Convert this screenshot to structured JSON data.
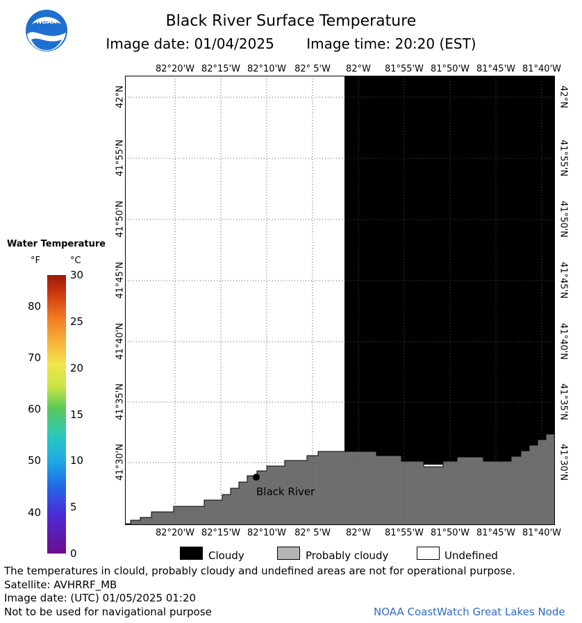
{
  "title": "Black River Surface Temperature",
  "image_date_label": "Image date: 01/04/2025",
  "image_time_label": "Image time: 20:20 (EST)",
  "logo_text": "NOAA",
  "longitudes": [
    "82°20'W",
    "82°15'W",
    "82°10'W",
    "82° 5'W",
    "82°W",
    "81°55'W",
    "81°50'W",
    "81°45'W",
    "81°40'W"
  ],
  "latitudes": [
    "42°N",
    "41°55'N",
    "41°50'N",
    "41°45'N",
    "41°40'N",
    "41°35'N",
    "41°30'N"
  ],
  "place_label": "Black River",
  "colorbar": {
    "title": "Water Temperature",
    "unit_f": "°F",
    "unit_c": "°C",
    "f_ticks": [
      "80",
      "70",
      "60",
      "50",
      "40"
    ],
    "c_ticks": [
      "30",
      "25",
      "20",
      "15",
      "10",
      "5",
      "0"
    ]
  },
  "legend": [
    {
      "label": "Cloudy",
      "color": "#000000"
    },
    {
      "label": "Probably cloudy",
      "color": "#b4b4b4"
    },
    {
      "label": "Undefined",
      "color": "#ffffff"
    }
  ],
  "footer": {
    "disclaimer": "The temperatures in clould, probably cloudy and undefined areas are not for operational purpose.",
    "satellite": "Satellite: AVHRRF_MB",
    "utc_date": "Image date: (UTC) 01/05/2025  01:20",
    "nav_warning": "Not to be used for navigational purpose",
    "credit": "NOAA CoastWatch Great Lakes Node"
  },
  "colors": {
    "land": "#6e6e6e",
    "cloud": "#000000",
    "water_undefined": "#ffffff",
    "credit": "#2e6bc4"
  }
}
